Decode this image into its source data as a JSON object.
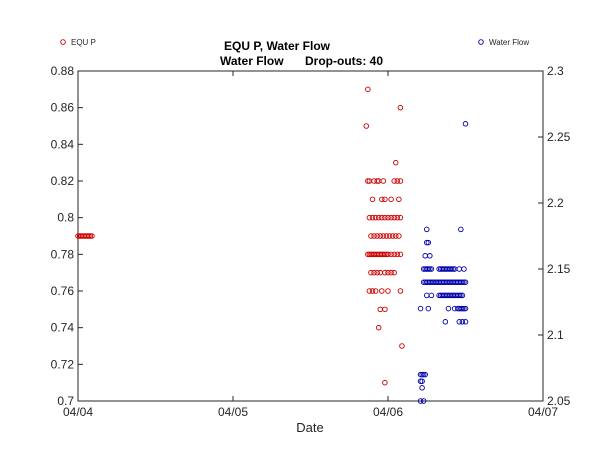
{
  "chart_data": {
    "type": "scatter",
    "title": "EQU P, Water Flow",
    "subtitle_left": "Water Flow",
    "subtitle_right": "Drop-outs: 40",
    "xlabel": "Date",
    "ylabel_left": "",
    "ylabel_right": "",
    "xlim": [
      0,
      3
    ],
    "x_ticks": [
      0,
      1,
      2,
      3
    ],
    "x_tick_labels": [
      "04/04",
      "04/05",
      "04/06",
      "04/07"
    ],
    "ylim_left": [
      0.7,
      0.88
    ],
    "y_ticks_left": [
      0.7,
      0.72,
      0.74,
      0.76,
      0.78,
      0.8,
      0.82,
      0.84,
      0.86,
      0.88
    ],
    "y_tick_labels_left": [
      "0.7",
      "0.72",
      "0.74",
      "0.76",
      "0.78",
      "0.8",
      "0.82",
      "0.84",
      "0.86",
      "0.88"
    ],
    "ylim_right": [
      2.05,
      2.3
    ],
    "y_ticks_right": [
      2.05,
      2.1,
      2.15,
      2.2,
      2.25,
      2.3
    ],
    "y_tick_labels_right": [
      "2.05",
      "2.1",
      "2.15",
      "2.2",
      "2.25",
      "2.3"
    ],
    "grid": false,
    "legend": [
      {
        "name": "EQU P",
        "color": "#cc0000",
        "position": "top-left"
      },
      {
        "name": "Water Flow",
        "color": "#0000aa",
        "position": "top-right"
      }
    ],
    "series": [
      {
        "name": "EQU P",
        "axis": "left",
        "color": "#cc0000",
        "marker": "open-circle",
        "points": [
          [
            0.0,
            0.79
          ],
          [
            0.01,
            0.79
          ],
          [
            0.02,
            0.79
          ],
          [
            0.03,
            0.79
          ],
          [
            0.04,
            0.79
          ],
          [
            0.05,
            0.79
          ],
          [
            0.06,
            0.79
          ],
          [
            0.07,
            0.79
          ],
          [
            0.08,
            0.79
          ],
          [
            0.09,
            0.79
          ],
          [
            1.86,
            0.85
          ],
          [
            1.87,
            0.87
          ],
          [
            2.08,
            0.86
          ],
          [
            2.05,
            0.83
          ],
          [
            1.87,
            0.82
          ],
          [
            1.88,
            0.82
          ],
          [
            1.91,
            0.82
          ],
          [
            1.93,
            0.82
          ],
          [
            1.94,
            0.82
          ],
          [
            1.97,
            0.82
          ],
          [
            2.04,
            0.82
          ],
          [
            2.06,
            0.82
          ],
          [
            2.08,
            0.82
          ],
          [
            1.9,
            0.81
          ],
          [
            1.96,
            0.81
          ],
          [
            1.98,
            0.81
          ],
          [
            2.02,
            0.81
          ],
          [
            2.07,
            0.81
          ],
          [
            1.88,
            0.8
          ],
          [
            1.9,
            0.8
          ],
          [
            1.92,
            0.8
          ],
          [
            1.94,
            0.8
          ],
          [
            1.96,
            0.8
          ],
          [
            1.98,
            0.8
          ],
          [
            2.0,
            0.8
          ],
          [
            2.02,
            0.8
          ],
          [
            2.04,
            0.8
          ],
          [
            2.06,
            0.8
          ],
          [
            2.08,
            0.8
          ],
          [
            1.89,
            0.79
          ],
          [
            1.91,
            0.79
          ],
          [
            1.93,
            0.79
          ],
          [
            1.95,
            0.79
          ],
          [
            1.97,
            0.79
          ],
          [
            1.99,
            0.79
          ],
          [
            2.01,
            0.79
          ],
          [
            2.03,
            0.79
          ],
          [
            2.05,
            0.79
          ],
          [
            2.07,
            0.79
          ],
          [
            1.87,
            0.78
          ],
          [
            1.88,
            0.78
          ],
          [
            1.89,
            0.78
          ],
          [
            1.9,
            0.78
          ],
          [
            1.91,
            0.78
          ],
          [
            1.92,
            0.78
          ],
          [
            1.93,
            0.78
          ],
          [
            1.94,
            0.78
          ],
          [
            1.95,
            0.78
          ],
          [
            1.96,
            0.78
          ],
          [
            1.97,
            0.78
          ],
          [
            1.98,
            0.78
          ],
          [
            1.99,
            0.78
          ],
          [
            2.0,
            0.78
          ],
          [
            2.02,
            0.78
          ],
          [
            2.04,
            0.78
          ],
          [
            2.06,
            0.78
          ],
          [
            2.08,
            0.78
          ],
          [
            1.89,
            0.77
          ],
          [
            1.91,
            0.77
          ],
          [
            1.93,
            0.77
          ],
          [
            1.95,
            0.77
          ],
          [
            1.98,
            0.77
          ],
          [
            2.0,
            0.77
          ],
          [
            2.02,
            0.77
          ],
          [
            2.04,
            0.77
          ],
          [
            1.88,
            0.76
          ],
          [
            1.9,
            0.76
          ],
          [
            1.92,
            0.76
          ],
          [
            1.96,
            0.76
          ],
          [
            2.0,
            0.76
          ],
          [
            2.08,
            0.76
          ],
          [
            1.95,
            0.75
          ],
          [
            1.98,
            0.75
          ],
          [
            1.94,
            0.74
          ],
          [
            2.09,
            0.73
          ],
          [
            1.98,
            0.71
          ]
        ]
      },
      {
        "name": "Water Flow",
        "axis": "right",
        "color": "#0000aa",
        "marker": "open-circle",
        "points": [
          [
            2.5,
            2.26
          ],
          [
            2.25,
            2.18
          ],
          [
            2.47,
            2.18
          ],
          [
            2.25,
            2.17
          ],
          [
            2.26,
            2.17
          ],
          [
            2.24,
            2.16
          ],
          [
            2.27,
            2.16
          ],
          [
            2.23,
            2.15
          ],
          [
            2.24,
            2.15
          ],
          [
            2.25,
            2.15
          ],
          [
            2.26,
            2.15
          ],
          [
            2.27,
            2.15
          ],
          [
            2.28,
            2.15
          ],
          [
            2.33,
            2.15
          ],
          [
            2.34,
            2.15
          ],
          [
            2.35,
            2.15
          ],
          [
            2.36,
            2.15
          ],
          [
            2.37,
            2.15
          ],
          [
            2.38,
            2.15
          ],
          [
            2.39,
            2.15
          ],
          [
            2.4,
            2.15
          ],
          [
            2.41,
            2.15
          ],
          [
            2.42,
            2.15
          ],
          [
            2.43,
            2.15
          ],
          [
            2.46,
            2.15
          ],
          [
            2.49,
            2.15
          ],
          [
            2.23,
            2.14
          ],
          [
            2.24,
            2.14
          ],
          [
            2.25,
            2.14
          ],
          [
            2.26,
            2.14
          ],
          [
            2.27,
            2.14
          ],
          [
            2.28,
            2.14
          ],
          [
            2.29,
            2.14
          ],
          [
            2.3,
            2.14
          ],
          [
            2.31,
            2.14
          ],
          [
            2.32,
            2.14
          ],
          [
            2.33,
            2.14
          ],
          [
            2.34,
            2.14
          ],
          [
            2.35,
            2.14
          ],
          [
            2.36,
            2.14
          ],
          [
            2.37,
            2.14
          ],
          [
            2.38,
            2.14
          ],
          [
            2.39,
            2.14
          ],
          [
            2.4,
            2.14
          ],
          [
            2.41,
            2.14
          ],
          [
            2.42,
            2.14
          ],
          [
            2.43,
            2.14
          ],
          [
            2.44,
            2.14
          ],
          [
            2.45,
            2.14
          ],
          [
            2.46,
            2.14
          ],
          [
            2.47,
            2.14
          ],
          [
            2.48,
            2.14
          ],
          [
            2.49,
            2.14
          ],
          [
            2.5,
            2.14
          ],
          [
            2.25,
            2.13
          ],
          [
            2.28,
            2.13
          ],
          [
            2.33,
            2.13
          ],
          [
            2.34,
            2.13
          ],
          [
            2.35,
            2.13
          ],
          [
            2.36,
            2.13
          ],
          [
            2.37,
            2.13
          ],
          [
            2.38,
            2.13
          ],
          [
            2.39,
            2.13
          ],
          [
            2.4,
            2.13
          ],
          [
            2.41,
            2.13
          ],
          [
            2.42,
            2.13
          ],
          [
            2.43,
            2.13
          ],
          [
            2.44,
            2.13
          ],
          [
            2.45,
            2.13
          ],
          [
            2.46,
            2.13
          ],
          [
            2.47,
            2.13
          ],
          [
            2.48,
            2.13
          ],
          [
            2.21,
            2.12
          ],
          [
            2.26,
            2.12
          ],
          [
            2.39,
            2.12
          ],
          [
            2.43,
            2.12
          ],
          [
            2.45,
            2.12
          ],
          [
            2.46,
            2.12
          ],
          [
            2.47,
            2.12
          ],
          [
            2.48,
            2.12
          ],
          [
            2.49,
            2.12
          ],
          [
            2.5,
            2.12
          ],
          [
            2.37,
            2.11
          ],
          [
            2.46,
            2.11
          ],
          [
            2.48,
            2.11
          ],
          [
            2.5,
            2.11
          ],
          [
            2.21,
            2.07
          ],
          [
            2.22,
            2.07
          ],
          [
            2.23,
            2.07
          ],
          [
            2.24,
            2.07
          ],
          [
            2.21,
            2.065
          ],
          [
            2.22,
            2.065
          ],
          [
            2.22,
            2.06
          ],
          [
            2.21,
            2.05
          ],
          [
            2.23,
            2.05
          ]
        ]
      }
    ]
  }
}
